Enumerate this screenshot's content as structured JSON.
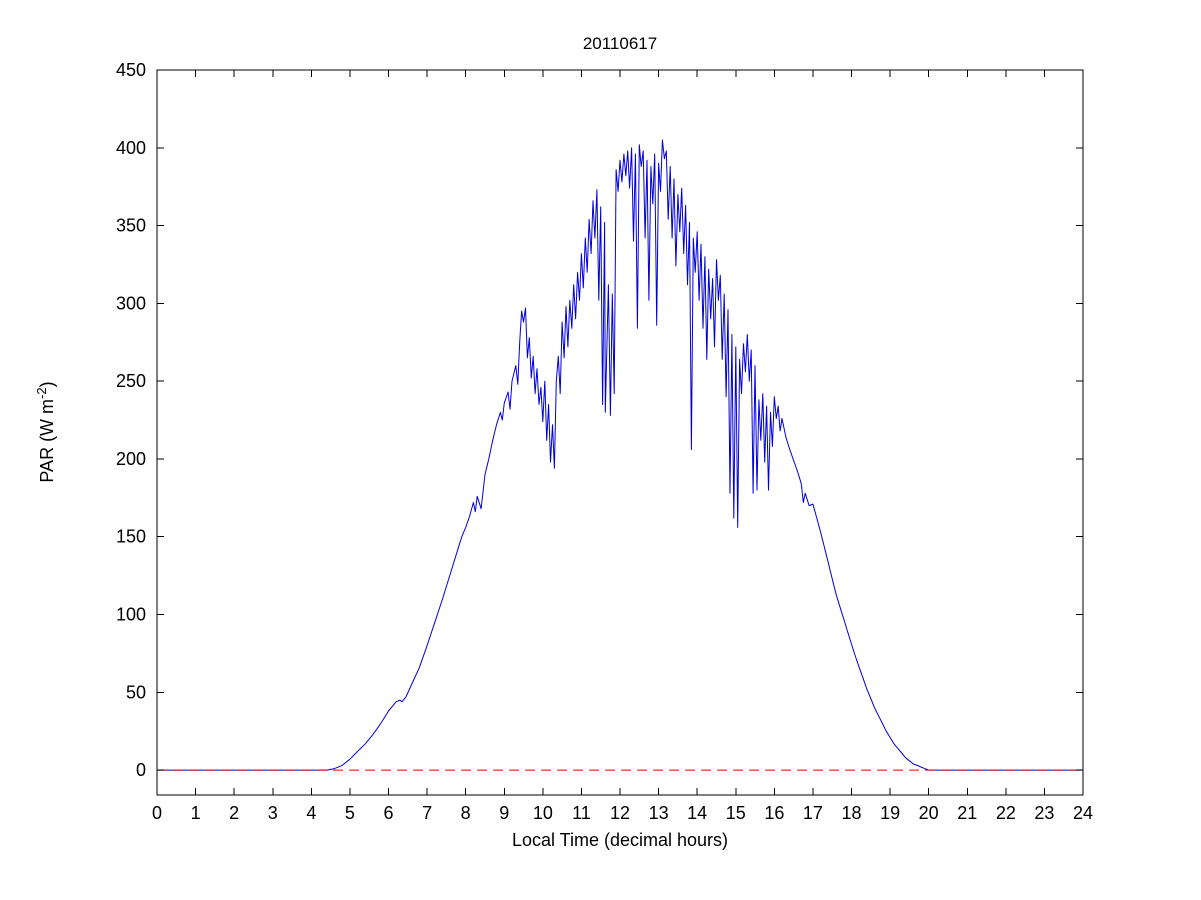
{
  "figure": {
    "background": "#ffffff",
    "axes_color": "#000000"
  },
  "chart_data": {
    "type": "line",
    "title": "20110617",
    "xlabel": "Local Time (decimal hours)",
    "ylabel": "PAR (W m-2)",
    "ylabel_parts": {
      "pre": "PAR (W m",
      "sup": "-2",
      "post": ")"
    },
    "xlim": [
      0,
      24
    ],
    "ylim": [
      -16,
      450
    ],
    "xticks": [
      0,
      1,
      2,
      3,
      4,
      5,
      6,
      7,
      8,
      9,
      10,
      11,
      12,
      13,
      14,
      15,
      16,
      17,
      18,
      19,
      20,
      21,
      22,
      23,
      24
    ],
    "yticks": [
      0,
      50,
      100,
      150,
      200,
      250,
      300,
      350,
      400,
      450
    ],
    "grid": false,
    "legend": "none",
    "series": [
      {
        "name": "PAR",
        "color": "#0000dd",
        "style": "solid",
        "points": [
          [
            0,
            0
          ],
          [
            0.5,
            0
          ],
          [
            1,
            0
          ],
          [
            1.5,
            0
          ],
          [
            2,
            0
          ],
          [
            2.5,
            0
          ],
          [
            3,
            0
          ],
          [
            3.5,
            0
          ],
          [
            4,
            0
          ],
          [
            4.4,
            0
          ],
          [
            4.6,
            1
          ],
          [
            4.8,
            3
          ],
          [
            5.0,
            7
          ],
          [
            5.2,
            12
          ],
          [
            5.4,
            17
          ],
          [
            5.6,
            23
          ],
          [
            5.8,
            30
          ],
          [
            6.0,
            38
          ],
          [
            6.1,
            41
          ],
          [
            6.2,
            44
          ],
          [
            6.3,
            45
          ],
          [
            6.35,
            44
          ],
          [
            6.45,
            47
          ],
          [
            6.6,
            55
          ],
          [
            6.8,
            66
          ],
          [
            7.0,
            80
          ],
          [
            7.2,
            95
          ],
          [
            7.4,
            110
          ],
          [
            7.6,
            126
          ],
          [
            7.8,
            142
          ],
          [
            7.9,
            150
          ],
          [
            8.0,
            156
          ],
          [
            8.1,
            163
          ],
          [
            8.2,
            172
          ],
          [
            8.25,
            166
          ],
          [
            8.3,
            176
          ],
          [
            8.4,
            168
          ],
          [
            8.5,
            190
          ],
          [
            8.6,
            200
          ],
          [
            8.7,
            212
          ],
          [
            8.8,
            222
          ],
          [
            8.9,
            230
          ],
          [
            8.95,
            225
          ],
          [
            9.0,
            236
          ],
          [
            9.1,
            243
          ],
          [
            9.15,
            232
          ],
          [
            9.2,
            250
          ],
          [
            9.3,
            260
          ],
          [
            9.35,
            248
          ],
          [
            9.4,
            275
          ],
          [
            9.45,
            295
          ],
          [
            9.5,
            288
          ],
          [
            9.55,
            297
          ],
          [
            9.6,
            265
          ],
          [
            9.65,
            278
          ],
          [
            9.7,
            252
          ],
          [
            9.75,
            266
          ],
          [
            9.8,
            242
          ],
          [
            9.85,
            258
          ],
          [
            9.9,
            235
          ],
          [
            9.95,
            246
          ],
          [
            10.0,
            224
          ],
          [
            10.05,
            250
          ],
          [
            10.1,
            212
          ],
          [
            10.15,
            235
          ],
          [
            10.2,
            198
          ],
          [
            10.25,
            222
          ],
          [
            10.3,
            194
          ],
          [
            10.35,
            250
          ],
          [
            10.4,
            266
          ],
          [
            10.45,
            242
          ],
          [
            10.5,
            288
          ],
          [
            10.55,
            265
          ],
          [
            10.6,
            298
          ],
          [
            10.65,
            272
          ],
          [
            10.7,
            302
          ],
          [
            10.75,
            284
          ],
          [
            10.8,
            312
          ],
          [
            10.85,
            290
          ],
          [
            10.9,
            320
          ],
          [
            10.95,
            302
          ],
          [
            11.0,
            332
          ],
          [
            11.05,
            310
          ],
          [
            11.1,
            342
          ],
          [
            11.15,
            320
          ],
          [
            11.2,
            354
          ],
          [
            11.25,
            332
          ],
          [
            11.3,
            366
          ],
          [
            11.35,
            342
          ],
          [
            11.4,
            373
          ],
          [
            11.45,
            302
          ],
          [
            11.5,
            362
          ],
          [
            11.55,
            235
          ],
          [
            11.6,
            352
          ],
          [
            11.62,
            230
          ],
          [
            11.7,
            312
          ],
          [
            11.75,
            228
          ],
          [
            11.8,
            306
          ],
          [
            11.85,
            242
          ],
          [
            11.9,
            386
          ],
          [
            11.95,
            372
          ],
          [
            12.0,
            392
          ],
          [
            12.05,
            378
          ],
          [
            12.1,
            396
          ],
          [
            12.15,
            382
          ],
          [
            12.2,
            398
          ],
          [
            12.25,
            374
          ],
          [
            12.3,
            400
          ],
          [
            12.35,
            340
          ],
          [
            12.4,
            396
          ],
          [
            12.45,
            284
          ],
          [
            12.5,
            402
          ],
          [
            12.55,
            388
          ],
          [
            12.6,
            398
          ],
          [
            12.65,
            342
          ],
          [
            12.7,
            392
          ],
          [
            12.75,
            302
          ],
          [
            12.8,
            388
          ],
          [
            12.85,
            364
          ],
          [
            12.9,
            396
          ],
          [
            12.95,
            286
          ],
          [
            13.0,
            390
          ],
          [
            13.05,
            372
          ],
          [
            13.1,
            405
          ],
          [
            13.15,
            393
          ],
          [
            13.2,
            398
          ],
          [
            13.25,
            354
          ],
          [
            13.3,
            388
          ],
          [
            13.35,
            342
          ],
          [
            13.4,
            380
          ],
          [
            13.45,
            324
          ],
          [
            13.5,
            370
          ],
          [
            13.55,
            346
          ],
          [
            13.6,
            374
          ],
          [
            13.65,
            332
          ],
          [
            13.7,
            363
          ],
          [
            13.75,
            312
          ],
          [
            13.8,
            352
          ],
          [
            13.85,
            206
          ],
          [
            13.9,
            342
          ],
          [
            13.95,
            320
          ],
          [
            14.0,
            346
          ],
          [
            14.05,
            302
          ],
          [
            14.1,
            338
          ],
          [
            14.15,
            284
          ],
          [
            14.2,
            330
          ],
          [
            14.25,
            264
          ],
          [
            14.3,
            322
          ],
          [
            14.35,
            290
          ],
          [
            14.4,
            316
          ],
          [
            14.45,
            272
          ],
          [
            14.5,
            328
          ],
          [
            14.55,
            302
          ],
          [
            14.6,
            318
          ],
          [
            14.65,
            264
          ],
          [
            14.7,
            306
          ],
          [
            14.75,
            240
          ],
          [
            14.8,
            296
          ],
          [
            14.85,
            178
          ],
          [
            14.9,
            280
          ],
          [
            14.95,
            162
          ],
          [
            15.0,
            272
          ],
          [
            15.05,
            156
          ],
          [
            15.1,
            264
          ],
          [
            15.15,
            242
          ],
          [
            15.2,
            274
          ],
          [
            15.25,
            256
          ],
          [
            15.3,
            280
          ],
          [
            15.35,
            250
          ],
          [
            15.4,
            270
          ],
          [
            15.45,
            178
          ],
          [
            15.5,
            260
          ],
          [
            15.55,
            180
          ],
          [
            15.6,
            238
          ],
          [
            15.65,
            212
          ],
          [
            15.7,
            242
          ],
          [
            15.75,
            198
          ],
          [
            15.8,
            234
          ],
          [
            15.85,
            180
          ],
          [
            15.9,
            230
          ],
          [
            15.95,
            208
          ],
          [
            16.0,
            240
          ],
          [
            16.05,
            226
          ],
          [
            16.1,
            234
          ],
          [
            16.15,
            218
          ],
          [
            16.2,
            226
          ],
          [
            16.3,
            214
          ],
          [
            16.4,
            206
          ],
          [
            16.5,
            199
          ],
          [
            16.6,
            192
          ],
          [
            16.7,
            184
          ],
          [
            16.75,
            172
          ],
          [
            16.8,
            178
          ],
          [
            16.9,
            170
          ],
          [
            17.0,
            171
          ],
          [
            17.1,
            162
          ],
          [
            17.2,
            153
          ],
          [
            17.3,
            143
          ],
          [
            17.4,
            133
          ],
          [
            17.5,
            123
          ],
          [
            17.6,
            113
          ],
          [
            17.7,
            105
          ],
          [
            17.8,
            97
          ],
          [
            17.9,
            89
          ],
          [
            18.0,
            81
          ],
          [
            18.1,
            73
          ],
          [
            18.2,
            66
          ],
          [
            18.3,
            59
          ],
          [
            18.4,
            52
          ],
          [
            18.5,
            46
          ],
          [
            18.6,
            40
          ],
          [
            18.7,
            35
          ],
          [
            18.8,
            30
          ],
          [
            18.9,
            25
          ],
          [
            19.0,
            21
          ],
          [
            19.1,
            17
          ],
          [
            19.2,
            14
          ],
          [
            19.3,
            11
          ],
          [
            19.4,
            8
          ],
          [
            19.5,
            6
          ],
          [
            19.6,
            4
          ],
          [
            19.7,
            3
          ],
          [
            19.8,
            2
          ],
          [
            19.9,
            1
          ],
          [
            20.0,
            0
          ],
          [
            20.5,
            0
          ],
          [
            21,
            0
          ],
          [
            21.5,
            0
          ],
          [
            22,
            0
          ],
          [
            22.5,
            0
          ],
          [
            23,
            0
          ],
          [
            23.5,
            0
          ],
          [
            24,
            0
          ]
        ]
      },
      {
        "name": "zero-reference",
        "color": "#e00000",
        "style": "dashed",
        "y": 0,
        "x_range": [
          0,
          24
        ]
      }
    ]
  }
}
